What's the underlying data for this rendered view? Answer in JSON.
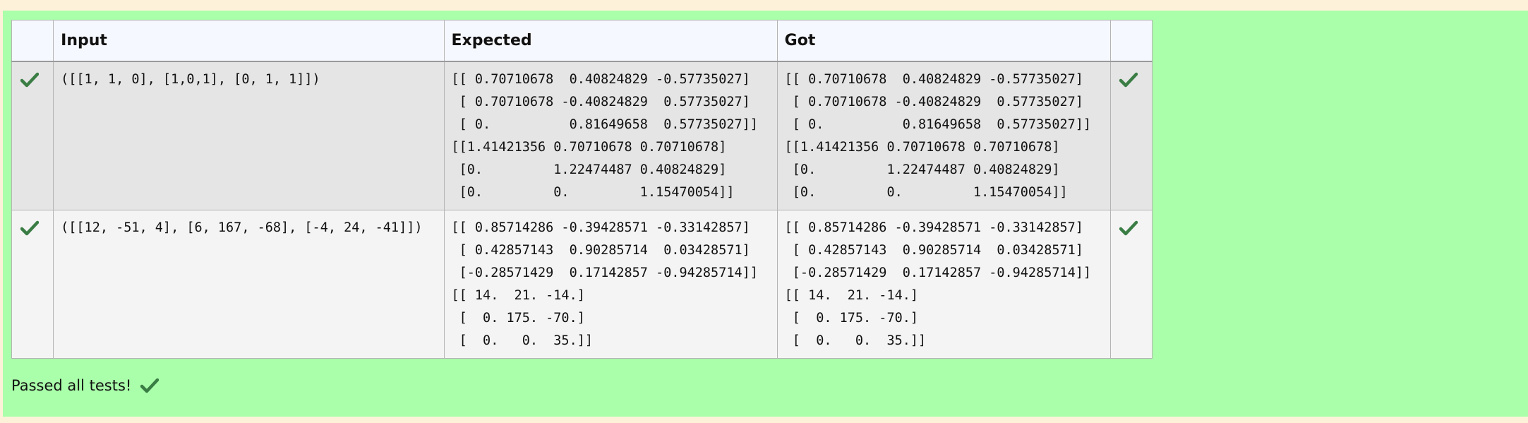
{
  "table": {
    "headers": {
      "input": "Input",
      "expected": "Expected",
      "got": "Got"
    },
    "rows": [
      {
        "status": "passed",
        "input": "([[1, 1, 0], [1,0,1], [0, 1, 1]])",
        "expected": "[[ 0.70710678  0.40824829 -0.57735027]\n [ 0.70710678 -0.40824829  0.57735027]\n [ 0.          0.81649658  0.57735027]]\n[[1.41421356 0.70710678 0.70710678]\n [0.         1.22474487 0.40824829]\n [0.         0.         1.15470054]]",
        "got": "[[ 0.70710678  0.40824829 -0.57735027]\n [ 0.70710678 -0.40824829  0.57735027]\n [ 0.          0.81649658  0.57735027]]\n[[1.41421356 0.70710678 0.70710678]\n [0.         1.22474487 0.40824829]\n [0.         0.         1.15470054]]"
      },
      {
        "status": "passed",
        "input": "([[12, -51, 4], [6, 167, -68], [-4, 24, -41]])",
        "expected": "[[ 0.85714286 -0.39428571 -0.33142857]\n [ 0.42857143  0.90285714  0.03428571]\n [-0.28571429  0.17142857 -0.94285714]]\n[[ 14.  21. -14.]\n [  0. 175. -70.]\n [  0.   0.  35.]]",
        "got": "[[ 0.85714286 -0.39428571 -0.33142857]\n [ 0.42857143  0.90285714  0.03428571]\n [-0.28571429  0.17142857 -0.94285714]]\n[[ 14.  21. -14.]\n [  0. 175. -70.]\n [  0.   0.  35.]]"
      }
    ]
  },
  "summary": {
    "text": "Passed all tests!"
  },
  "colors": {
    "page_background": "#fdf2d9",
    "result_panel": "#aaffaa",
    "check_mark": "#3a7d44",
    "row_odd": "#e5e5e5",
    "row_even": "#f4f4f4",
    "header_background": "#f6f8ff"
  },
  "icons": {
    "row_status": "check-icon",
    "summary": "check-icon"
  }
}
